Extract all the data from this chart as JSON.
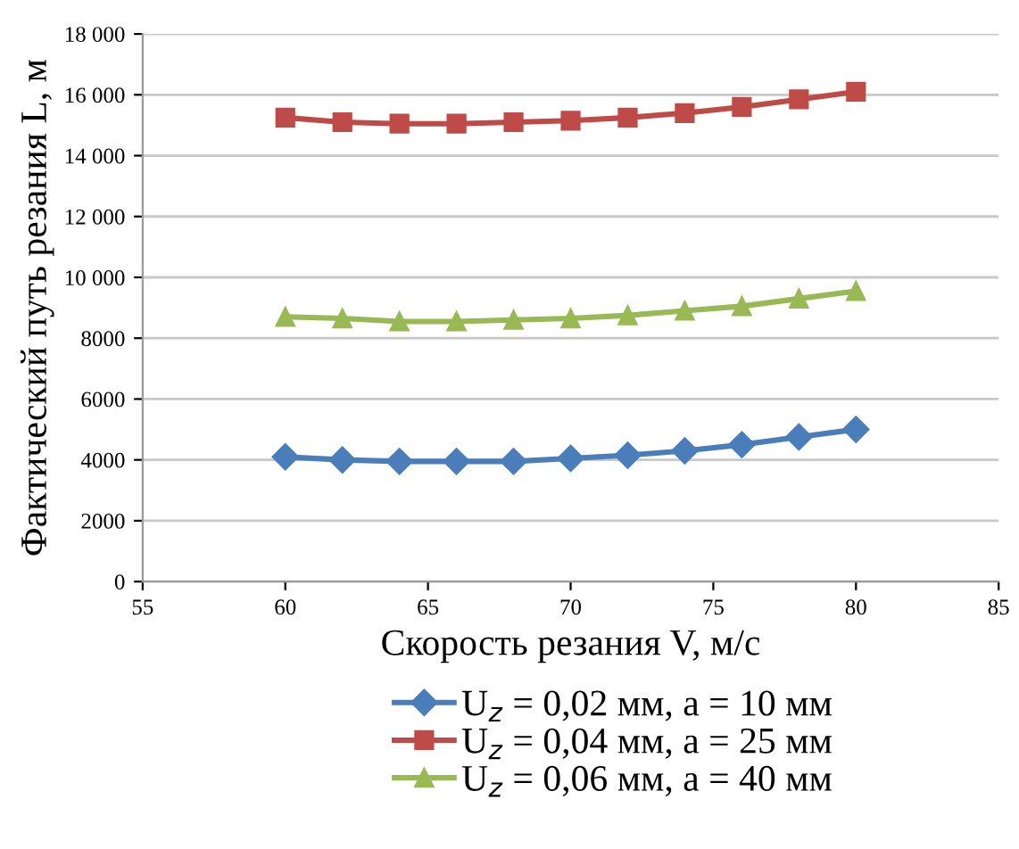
{
  "chart_data": {
    "type": "line",
    "xlabel": "Скорость резания V, м/с",
    "ylabel": "Фактический путь резания L, м",
    "x": [
      60,
      62,
      64,
      66,
      68,
      70,
      72,
      74,
      76,
      78,
      80
    ],
    "series": [
      {
        "name": "U$_{z}$ = 0,02 мм, a = 10 мм",
        "color": "#4a7ebb",
        "marker": "diamond",
        "values": [
          4100,
          4000,
          3950,
          3950,
          3950,
          4050,
          4150,
          4300,
          4500,
          4750,
          5000
        ]
      },
      {
        "name": "U$_{z}$ = 0,04 мм, a = 25 мм",
        "color": "#be4b48",
        "marker": "square",
        "values": [
          15250,
          15100,
          15050,
          15050,
          15100,
          15150,
          15250,
          15400,
          15600,
          15850,
          16100
        ]
      },
      {
        "name": "U$_{z}$ = 0,06 мм, a = 40 мм",
        "color": "#98b954",
        "marker": "triangle",
        "values": [
          8700,
          8650,
          8550,
          8550,
          8600,
          8650,
          8750,
          8900,
          9050,
          9300,
          9550
        ]
      }
    ],
    "xlim": [
      55,
      85
    ],
    "xticks": [
      55,
      60,
      65,
      70,
      75,
      80,
      85
    ],
    "ylim": [
      0,
      18000
    ],
    "yticks": [
      0,
      2000,
      4000,
      6000,
      8000,
      {
        "value": 10000,
        "label": "10 000"
      },
      {
        "value": 12000,
        "label": "12 000"
      },
      {
        "value": 14000,
        "label": "14 000"
      },
      {
        "value": 16000,
        "label": "16 000"
      },
      {
        "value": 18000,
        "label": "18 000"
      }
    ],
    "grid": "y",
    "legend": "bottom"
  }
}
